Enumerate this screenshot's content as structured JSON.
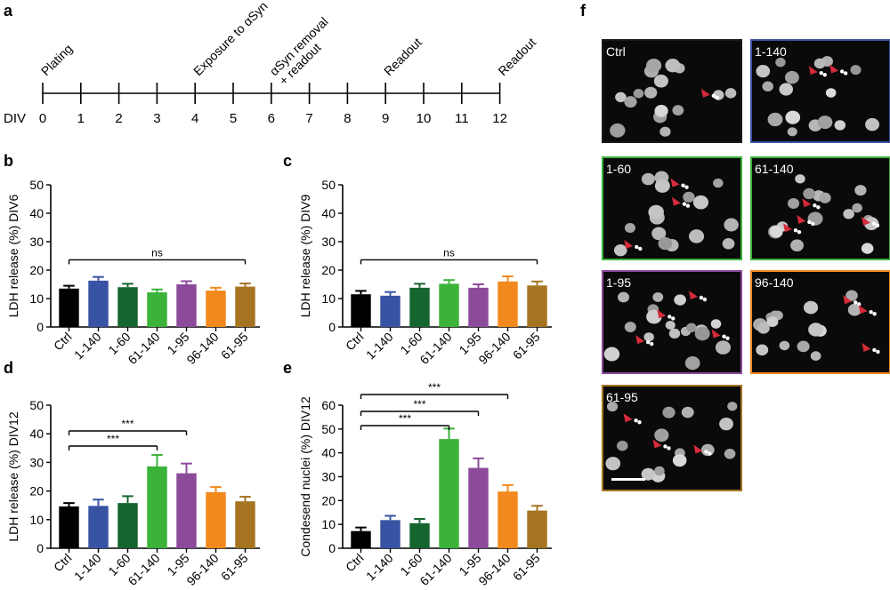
{
  "panel_letters": {
    "a": "a",
    "b": "b",
    "c": "c",
    "d": "d",
    "e": "e",
    "f": "f"
  },
  "timeline": {
    "axis_label": "DIV",
    "ticks": [
      "0",
      "1",
      "2",
      "3",
      "4",
      "5",
      "6",
      "7",
      "8",
      "9",
      "10",
      "11",
      "12"
    ],
    "events": [
      {
        "day": 0,
        "lines": [
          "Plating"
        ]
      },
      {
        "day": 4,
        "lines": [
          "Exposure to αSyn"
        ]
      },
      {
        "day": 6,
        "lines": [
          "αSyn removal",
          "+ readout"
        ]
      },
      {
        "day": 9,
        "lines": [
          "Readout"
        ]
      },
      {
        "day": 12,
        "lines": [
          "Readout"
        ]
      }
    ]
  },
  "colors": {
    "Ctrl": "#000000",
    "1-140": "#3953a4",
    "1-60": "#16652e",
    "61-140": "#3bb33a",
    "1-95": "#8c4a9b",
    "96-140": "#f2891e",
    "61-95": "#a67421"
  },
  "chart_data": [
    {
      "panel": "b",
      "type": "bar",
      "categories": [
        "Ctrl",
        "1-140",
        "1-60",
        "61-140",
        "1-95",
        "96-140",
        "61-95"
      ],
      "values": [
        13.5,
        16.3,
        14,
        12.2,
        15,
        12.8,
        14.2
      ],
      "errors": [
        1,
        1.3,
        1.2,
        1,
        1.1,
        1,
        1.1
      ],
      "ylabel": "LDH release (%) DIV6",
      "ylim": [
        0,
        50
      ],
      "yticks": [
        "0",
        "10",
        "20",
        "30",
        "40",
        "50"
      ],
      "significance": [
        {
          "from": "Ctrl",
          "to": "61-95",
          "label": "ns"
        }
      ]
    },
    {
      "panel": "c",
      "type": "bar",
      "categories": [
        "Ctrl",
        "1-140",
        "1-60",
        "61-140",
        "1-95",
        "96-140",
        "61-95"
      ],
      "values": [
        11.5,
        11,
        13.8,
        15.2,
        13.8,
        16,
        14.6
      ],
      "errors": [
        1.2,
        1.3,
        1.4,
        1.3,
        1.2,
        1.8,
        1.4
      ],
      "ylabel": "LDH release (%) DIV9",
      "ylim": [
        0,
        50
      ],
      "yticks": [
        "0",
        "10",
        "20",
        "30",
        "40",
        "50"
      ],
      "significance": [
        {
          "from": "Ctrl",
          "to": "61-95",
          "label": "ns"
        }
      ]
    },
    {
      "panel": "d",
      "type": "bar",
      "categories": [
        "Ctrl",
        "1-140",
        "1-60",
        "61-140",
        "1-95",
        "96-140",
        "61-95"
      ],
      "values": [
        14.6,
        14.8,
        15.8,
        28.6,
        26.2,
        19.6,
        16.4
      ],
      "errors": [
        1.2,
        2.2,
        2.4,
        4,
        3.4,
        1.8,
        1.6
      ],
      "ylabel": "LDH release (%) DIV12",
      "ylim": [
        0,
        50
      ],
      "yticks": [
        "0",
        "10",
        "20",
        "30",
        "40",
        "50"
      ],
      "significance": [
        {
          "from": "Ctrl",
          "to": "61-140",
          "label": "***"
        },
        {
          "from": "Ctrl",
          "to": "1-95",
          "label": "***"
        }
      ]
    },
    {
      "panel": "e",
      "type": "bar",
      "categories": [
        "Ctrl",
        "1-140",
        "1-60",
        "61-140",
        "1-95",
        "96-140",
        "61-95"
      ],
      "values": [
        7.2,
        11.8,
        10.5,
        45.8,
        33.7,
        23.8,
        15.8
      ],
      "errors": [
        1.5,
        1.8,
        1.8,
        4.4,
        4,
        2.7,
        2
      ],
      "ylabel": "Condesend nuclei (%) DIV12",
      "ylim": [
        0,
        60
      ],
      "yticks": [
        "0",
        "10",
        "20",
        "30",
        "40",
        "50",
        "60"
      ],
      "significance": [
        {
          "from": "Ctrl",
          "to": "61-140",
          "label": "***"
        },
        {
          "from": "Ctrl",
          "to": "1-95",
          "label": "***"
        },
        {
          "from": "Ctrl",
          "to": "96-140",
          "label": "***"
        }
      ]
    }
  ],
  "micrographs": [
    {
      "label": "Ctrl",
      "border_color": "#1a1a1a"
    },
    {
      "label": "1-140",
      "border_color": "#3953a4"
    },
    {
      "label": "1-60",
      "border_color": "#3bb33a"
    },
    {
      "label": "61-140",
      "border_color": "#3bb33a"
    },
    {
      "label": "1-95",
      "border_color": "#8c4a9b"
    },
    {
      "label": "96-140",
      "border_color": "#f2891e"
    },
    {
      "label": "61-95",
      "border_color": "#a67421"
    }
  ]
}
